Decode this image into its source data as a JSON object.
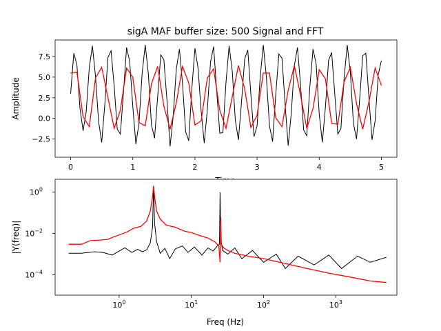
{
  "chart_data": [
    {
      "type": "line",
      "title": "sigA MAF buffer size: 500 Signal and FFT",
      "xlabel": "Time",
      "ylabel": "Amplitude",
      "xlim": [
        -0.25,
        5.25
      ],
      "ylim": [
        -4.7,
        9.5
      ],
      "xticks": [
        0,
        1,
        2,
        3,
        4,
        5
      ],
      "xtick_labels": [
        "0",
        "1",
        "2",
        "3",
        "4",
        "5"
      ],
      "yticks": [
        -2.5,
        0.0,
        2.5,
        5.0,
        7.5
      ],
      "ytick_labels": [
        "−2.5",
        "0.0",
        "2.5",
        "5.0",
        "7.5"
      ],
      "grid": false,
      "series": [
        {
          "color": "#000000",
          "description": "raw signal",
          "x": [
            0.0,
            0.05,
            0.1,
            0.15,
            0.2,
            0.25,
            0.3,
            0.35,
            0.4,
            0.45,
            0.5,
            0.55,
            0.6,
            0.65,
            0.7,
            0.75,
            0.8,
            0.85,
            0.9,
            0.95,
            1.0,
            1.05,
            1.1,
            1.15,
            1.2,
            1.25,
            1.3,
            1.35,
            1.4,
            1.45,
            1.5,
            1.55,
            1.6,
            1.65,
            1.7,
            1.75,
            1.8,
            1.85,
            1.9,
            1.95,
            2.0,
            2.05,
            2.1,
            2.15,
            2.2,
            2.25,
            2.3,
            2.35,
            2.4,
            2.45,
            2.5,
            2.55,
            2.6,
            2.65,
            2.7,
            2.75,
            2.8,
            2.85,
            2.9,
            2.95,
            3.0,
            3.05,
            3.1,
            3.15,
            3.2,
            3.25,
            3.3,
            3.35,
            3.4,
            3.45,
            3.5,
            3.55,
            3.6,
            3.65,
            3.7,
            3.75,
            3.8,
            3.85,
            3.9,
            3.95,
            4.0,
            4.05,
            4.1,
            4.15,
            4.2,
            4.25,
            4.3,
            4.35,
            4.4,
            4.45,
            4.5,
            4.55,
            4.6,
            4.65,
            4.7,
            4.75,
            4.8,
            4.85,
            4.9,
            4.95,
            5.0
          ],
          "y": [
            3.0,
            7.9,
            6.5,
            1.2,
            -1.5,
            0.8,
            6.2,
            8.8,
            5.1,
            -0.4,
            -2.9,
            1.7,
            7.4,
            8.2,
            3.9,
            -1.3,
            -1.9,
            3.2,
            8.6,
            6.9,
            1.5,
            -3.1,
            -0.6,
            5.5,
            8.9,
            5.4,
            -0.8,
            -2.4,
            2.6,
            7.7,
            7.1,
            2.2,
            -3.4,
            0.2,
            6.0,
            8.4,
            4.2,
            -1.6,
            -2.7,
            3.6,
            8.5,
            6.1,
            0.9,
            -3.0,
            1.1,
            6.8,
            8.7,
            3.3,
            -1.8,
            -1.7,
            4.4,
            8.8,
            5.8,
            -0.2,
            -2.6,
            2.0,
            7.2,
            8.3,
            2.9,
            -2.2,
            -0.9,
            5.0,
            8.9,
            5.0,
            -0.9,
            -2.8,
            2.8,
            7.8,
            7.3,
            1.8,
            -3.3,
            0.6,
            6.4,
            8.6,
            4.0,
            -1.4,
            -2.1,
            3.9,
            8.4,
            6.6,
            0.5,
            -2.9,
            1.4,
            7.0,
            8.0,
            3.0,
            -1.9,
            -1.2,
            4.8,
            8.9,
            5.6,
            -0.6,
            -2.5,
            2.3,
            7.6,
            7.9,
            2.5,
            -2.6,
            -0.3,
            5.3,
            7.0
          ]
        },
        {
          "color": "#ff0000",
          "description": "moving average",
          "x": [
            0.0,
            0.1,
            0.2,
            0.3,
            0.4,
            0.5,
            0.6,
            0.7,
            0.8,
            0.9,
            1.0,
            1.1,
            1.2,
            1.3,
            1.4,
            1.5,
            1.6,
            1.7,
            1.8,
            1.9,
            2.0,
            2.1,
            2.2,
            2.3,
            2.4,
            2.5,
            2.6,
            2.7,
            2.8,
            2.9,
            3.0,
            3.1,
            3.2,
            3.3,
            3.4,
            3.5,
            3.6,
            3.7,
            3.8,
            3.9,
            4.0,
            4.1,
            4.2,
            4.3,
            4.4,
            4.5,
            4.6,
            4.7,
            4.8,
            4.9,
            5.0
          ],
          "y": [
            5.5,
            5.6,
            0.2,
            -1.0,
            4.9,
            6.2,
            2.5,
            -1.2,
            1.0,
            6.1,
            5.0,
            -0.5,
            -0.9,
            4.2,
            6.3,
            1.5,
            -1.3,
            1.9,
            6.3,
            4.3,
            -0.8,
            -0.3,
            4.9,
            6.0,
            1.0,
            -1.2,
            2.6,
            6.4,
            3.6,
            -1.1,
            0.4,
            5.5,
            5.5,
            0.1,
            -1.0,
            3.4,
            6.4,
            2.8,
            -1.2,
            1.2,
            5.9,
            4.8,
            -0.6,
            -0.7,
            4.4,
            6.2,
            1.8,
            -1.3,
            2.0,
            6.1,
            4.0
          ]
        }
      ]
    },
    {
      "type": "line",
      "title": "",
      "xlabel": "Freq (Hz)",
      "ylabel": "|Y(freq)|",
      "xscale": "log",
      "yscale": "log",
      "xlim": [
        0.13,
        7000
      ],
      "ylim": [
        1.03e-05,
        4.2
      ],
      "xticks": [
        1,
        10,
        100,
        1000
      ],
      "xtick_labels": [
        "10",
        "10",
        "10",
        "10"
      ],
      "xtick_exponents": [
        "0",
        "1",
        "2",
        "3"
      ],
      "yticks": [
        0.0001,
        0.01,
        1
      ],
      "ytick_labels": [
        "10",
        "10",
        "10"
      ],
      "ytick_exponents": [
        "−4",
        "−2",
        "0"
      ],
      "grid": false,
      "series": [
        {
          "color": "#000000",
          "description": "FFT of raw signal",
          "x": [
            0.2,
            0.3,
            0.45,
            0.6,
            0.8,
            1.0,
            1.2,
            1.5,
            1.8,
            2.1,
            2.4,
            2.7,
            2.9,
            3.0,
            3.1,
            3.3,
            3.7,
            4.3,
            5.0,
            6.0,
            7.5,
            9.0,
            11.0,
            14.0,
            17.0,
            20.0,
            23.0,
            24.5,
            25.0,
            25.5,
            27.0,
            32.0,
            40.0,
            50.0,
            70.0,
            100.0,
            150.0,
            200.0,
            300.0,
            500.0,
            800.0,
            1200.0,
            2000.0,
            3000.0,
            5000.0
          ],
          "y": [
            0.0011,
            0.0011,
            0.0013,
            0.0012,
            0.0009,
            0.0014,
            0.002,
            0.0012,
            0.0017,
            0.0013,
            0.0016,
            0.0035,
            0.02,
            2.0,
            0.03,
            0.004,
            0.0011,
            0.0019,
            0.0006,
            0.0018,
            0.0025,
            0.0012,
            0.0022,
            0.0009,
            0.002,
            0.0014,
            0.0026,
            0.003,
            1.0,
            0.006,
            0.0015,
            0.001,
            0.002,
            0.0006,
            0.0015,
            0.0004,
            0.001,
            0.0002,
            0.0008,
            0.0003,
            0.0009,
            0.0002,
            0.0008,
            0.0004,
            0.0007
          ]
        },
        {
          "color": "#ff0000",
          "description": "FFT of moving average",
          "x": [
            0.2,
            0.3,
            0.4,
            0.55,
            0.7,
            0.85,
            1.0,
            1.3,
            1.6,
            2.0,
            2.4,
            2.7,
            2.9,
            3.0,
            3.1,
            3.3,
            3.7,
            4.5,
            6.0,
            8.0,
            10.0,
            13.0,
            17.0,
            21.0,
            24.0,
            25.0,
            25.5,
            26.0,
            28.0,
            32.0,
            40.0,
            60.0,
            100.0,
            200.0,
            400.0,
            800.0,
            1500.0,
            3000.0,
            5000.0
          ],
          "y": [
            0.003,
            0.003,
            0.0045,
            0.0048,
            0.0052,
            0.007,
            0.0085,
            0.012,
            0.018,
            0.022,
            0.04,
            0.12,
            0.6,
            2.0,
            0.6,
            0.12,
            0.05,
            0.025,
            0.02,
            0.013,
            0.011,
            0.008,
            0.006,
            0.004,
            0.0025,
            0.0004,
            0.06,
            0.003,
            0.002,
            0.0015,
            0.0011,
            0.0008,
            0.0006,
            0.00035,
            0.0002,
            0.00012,
            8e-05,
            5e-05,
            4.2e-05
          ]
        }
      ]
    }
  ]
}
